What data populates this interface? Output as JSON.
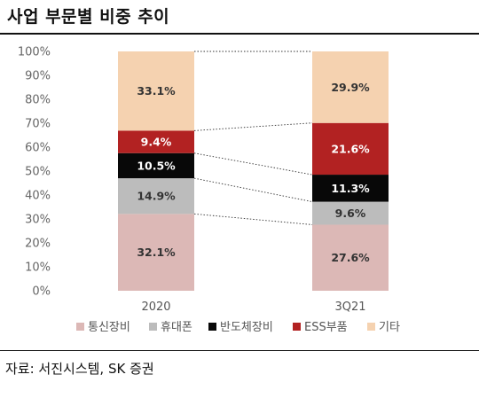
{
  "title": "사업 부문별 비중 추이",
  "source": "자료: 서진시스템, SK 증권",
  "chart_data": {
    "type": "bar",
    "stacked": true,
    "percent": true,
    "categories": [
      "2020",
      "3Q21"
    ],
    "ylim": [
      0,
      100
    ],
    "yticks": [
      "0%",
      "10%",
      "20%",
      "30%",
      "40%",
      "50%",
      "60%",
      "70%",
      "80%",
      "90%",
      "100%"
    ],
    "series": [
      {
        "name": "통신장비",
        "values": [
          32.1,
          27.6
        ],
        "labels": [
          "32.1%",
          "27.6%"
        ],
        "color": "#dcb8b6",
        "label_color": "#333333"
      },
      {
        "name": "휴대폰",
        "values": [
          14.9,
          9.6
        ],
        "labels": [
          "14.9%",
          "9.6%"
        ],
        "color": "#bcbcbc",
        "label_color": "#333333"
      },
      {
        "name": "반도체장비",
        "values": [
          10.5,
          11.3
        ],
        "labels": [
          "10.5%",
          "11.3%"
        ],
        "color": "#080808",
        "label_color": "#ffffff"
      },
      {
        "name": "ESS부품",
        "values": [
          9.4,
          21.6
        ],
        "labels": [
          "9.4%",
          "21.6%"
        ],
        "color": "#b22222",
        "label_color": "#ffffff"
      },
      {
        "name": "기타",
        "values": [
          33.1,
          29.9
        ],
        "labels": [
          "33.1%",
          "29.9%"
        ],
        "color": "#f5d2b0",
        "label_color": "#333333"
      }
    ],
    "connector_lines": "dotted",
    "legend_position": "bottom",
    "grid": false
  }
}
